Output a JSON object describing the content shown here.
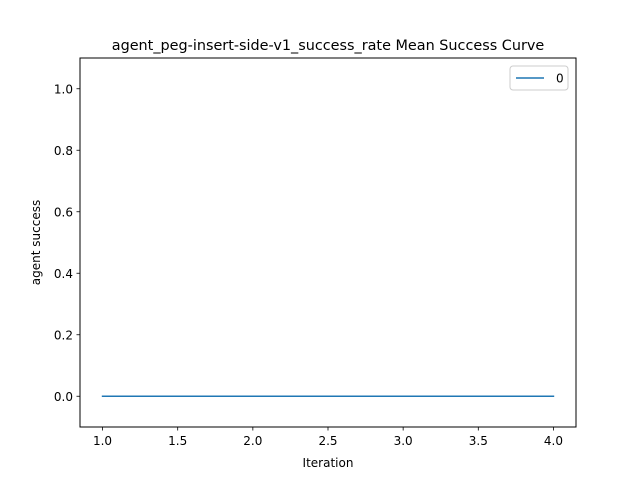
{
  "chart_data": {
    "type": "line",
    "title": "agent_peg-insert-side-v1_success_rate Mean Success Curve",
    "xlabel": "Iteration",
    "ylabel": "agent success",
    "xlim": [
      0.85,
      4.15
    ],
    "ylim": [
      -0.1,
      1.1
    ],
    "xticks": [
      1.0,
      1.5,
      2.0,
      2.5,
      3.0,
      3.5,
      4.0
    ],
    "xtick_labels": [
      "1.0",
      "1.5",
      "2.0",
      "2.5",
      "3.0",
      "3.5",
      "4.0"
    ],
    "yticks": [
      0.0,
      0.2,
      0.4,
      0.6,
      0.8,
      1.0
    ],
    "ytick_labels": [
      "0.0",
      "0.2",
      "0.4",
      "0.6",
      "0.8",
      "1.0"
    ],
    "grid": false,
    "legend": "top-right",
    "series": [
      {
        "name": "0",
        "color": "#1f77b4",
        "x": [
          1,
          2,
          3,
          4
        ],
        "y": [
          0.0,
          0.0,
          0.0,
          0.0
        ]
      }
    ]
  }
}
